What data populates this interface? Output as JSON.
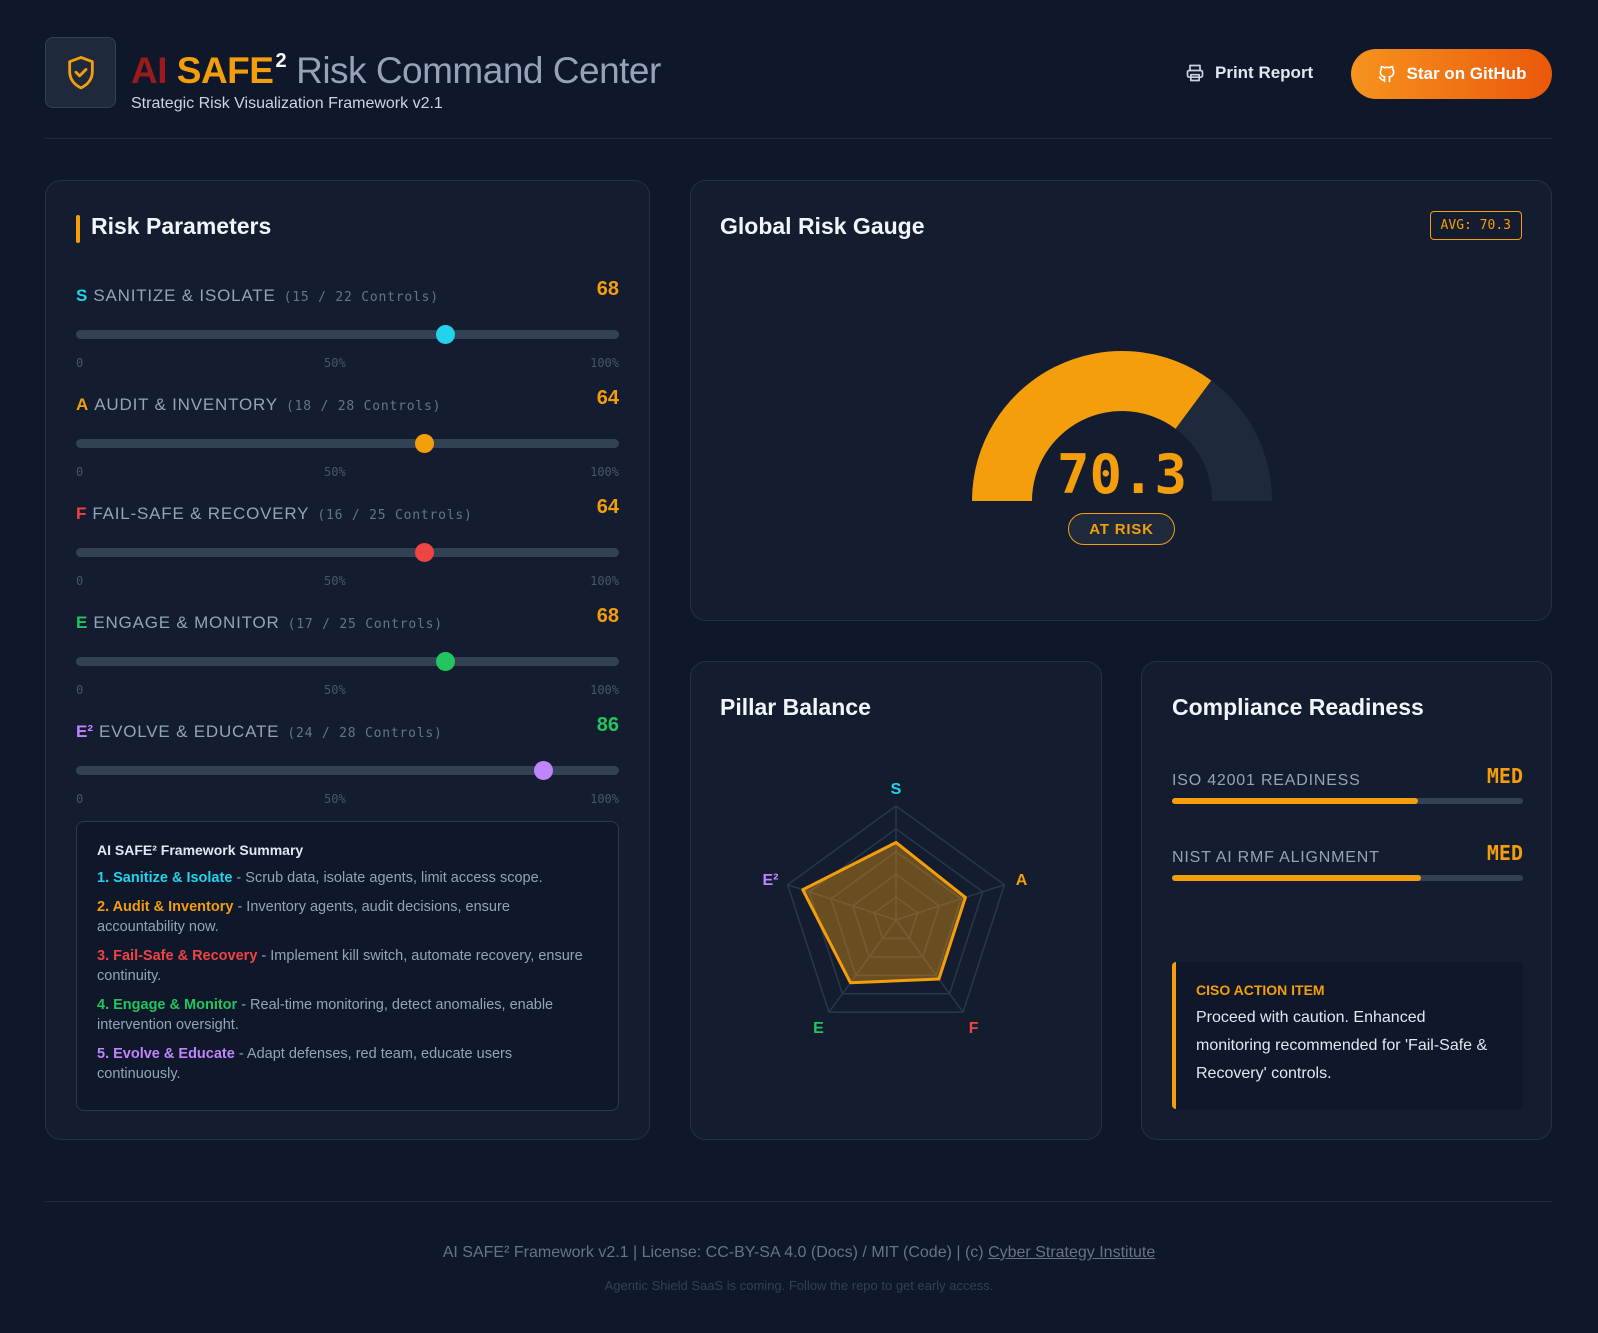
{
  "header": {
    "title_ai": "AI",
    "title_safe": "SAFE",
    "title_sup": "2",
    "title_rest": "Risk Command Center",
    "subtitle": "Strategic Risk Visualization Framework v2.1",
    "print_label": "Print Report",
    "github_label": "Star on GitHub",
    "logo_icon": "shield-check-icon"
  },
  "risk_panel": {
    "title": "Risk Parameters",
    "ticks": [
      "0",
      "50%",
      "100%"
    ],
    "pillars": [
      {
        "letter": "S",
        "name": "SANITIZE & ISOLATE",
        "controls": "(15 / 22 Controls)",
        "score": "68",
        "percent": 68,
        "color": "#22d3ee",
        "score_color": "#f59e0b"
      },
      {
        "letter": "A",
        "name": "AUDIT & INVENTORY",
        "controls": "(18 / 28 Controls)",
        "score": "64",
        "percent": 64,
        "color": "#f59e0b",
        "score_color": "#f59e0b"
      },
      {
        "letter": "F",
        "name": "FAIL-SAFE & RECOVERY",
        "controls": "(16 / 25 Controls)",
        "score": "64",
        "percent": 64,
        "color": "#ef4444",
        "score_color": "#f59e0b"
      },
      {
        "letter": "E",
        "name": "ENGAGE & MONITOR",
        "controls": "(17 / 25 Controls)",
        "score": "68",
        "percent": 68,
        "color": "#22c55e",
        "score_color": "#f59e0b"
      },
      {
        "letter": "E²",
        "name": "EVOLVE & EDUCATE",
        "controls": "(24 / 28 Controls)",
        "score": "86",
        "percent": 86,
        "color": "#c084fc",
        "score_color": "#22c55e"
      }
    ],
    "summary": {
      "title": "AI SAFE² Framework Summary",
      "items": [
        {
          "head": "1. Sanitize & Isolate",
          "text": " - Scrub data, isolate agents, limit access scope.",
          "color": "#22d3ee"
        },
        {
          "head": "2. Audit & Inventory",
          "text": " - Inventory agents, audit decisions, ensure accountability now.",
          "color": "#f59e0b"
        },
        {
          "head": "3. Fail-Safe & Recovery",
          "text": " - Implement kill switch, automate recovery, ensure continuity.",
          "color": "#ef4444"
        },
        {
          "head": "4. Engage & Monitor",
          "text": " - Real-time monitoring, detect anomalies, enable intervention oversight.",
          "color": "#22c55e"
        },
        {
          "head": "5. Evolve & Educate",
          "text": " - Adapt defenses, red team, educate users continuously.",
          "color": "#c084fc"
        }
      ]
    }
  },
  "gauge_panel": {
    "title": "Global Risk Gauge",
    "avg_badge": "AVG: 70.3",
    "value": "70.3",
    "percent": 70.3,
    "status": "AT RISK",
    "fill_color": "#f59e0b",
    "track_color": "#1e293b"
  },
  "radar_panel": {
    "title": "Pillar Balance",
    "axes": [
      {
        "label": "S",
        "value": 68,
        "color": "#22d3ee"
      },
      {
        "label": "A",
        "value": 64,
        "color": "#f59e0b"
      },
      {
        "label": "F",
        "value": 64,
        "color": "#ef4444"
      },
      {
        "label": "E",
        "value": 68,
        "color": "#22c55e"
      },
      {
        "label": "E²",
        "value": 86,
        "color": "#c084fc"
      }
    ]
  },
  "compliance_panel": {
    "title": "Compliance Readiness",
    "rows": [
      {
        "label": "ISO 42001 READINESS",
        "value": "MED",
        "percent": 70
      },
      {
        "label": "NIST AI RMF ALIGNMENT",
        "value": "MED",
        "percent": 71
      }
    ],
    "ciso": {
      "title": "CISO ACTION ITEM",
      "text": "Proceed with caution. Enhanced monitoring recommended for 'Fail-Safe & Recovery' controls."
    }
  },
  "footer": {
    "line1_prefix": "AI SAFE² Framework v2.1 | License: CC-BY-SA 4.0 (Docs) / MIT (Code) | (c) ",
    "link_label": "Cyber Strategy Institute",
    "line2": "Agentic Shield SaaS is coming. Follow the repo to get early access."
  }
}
